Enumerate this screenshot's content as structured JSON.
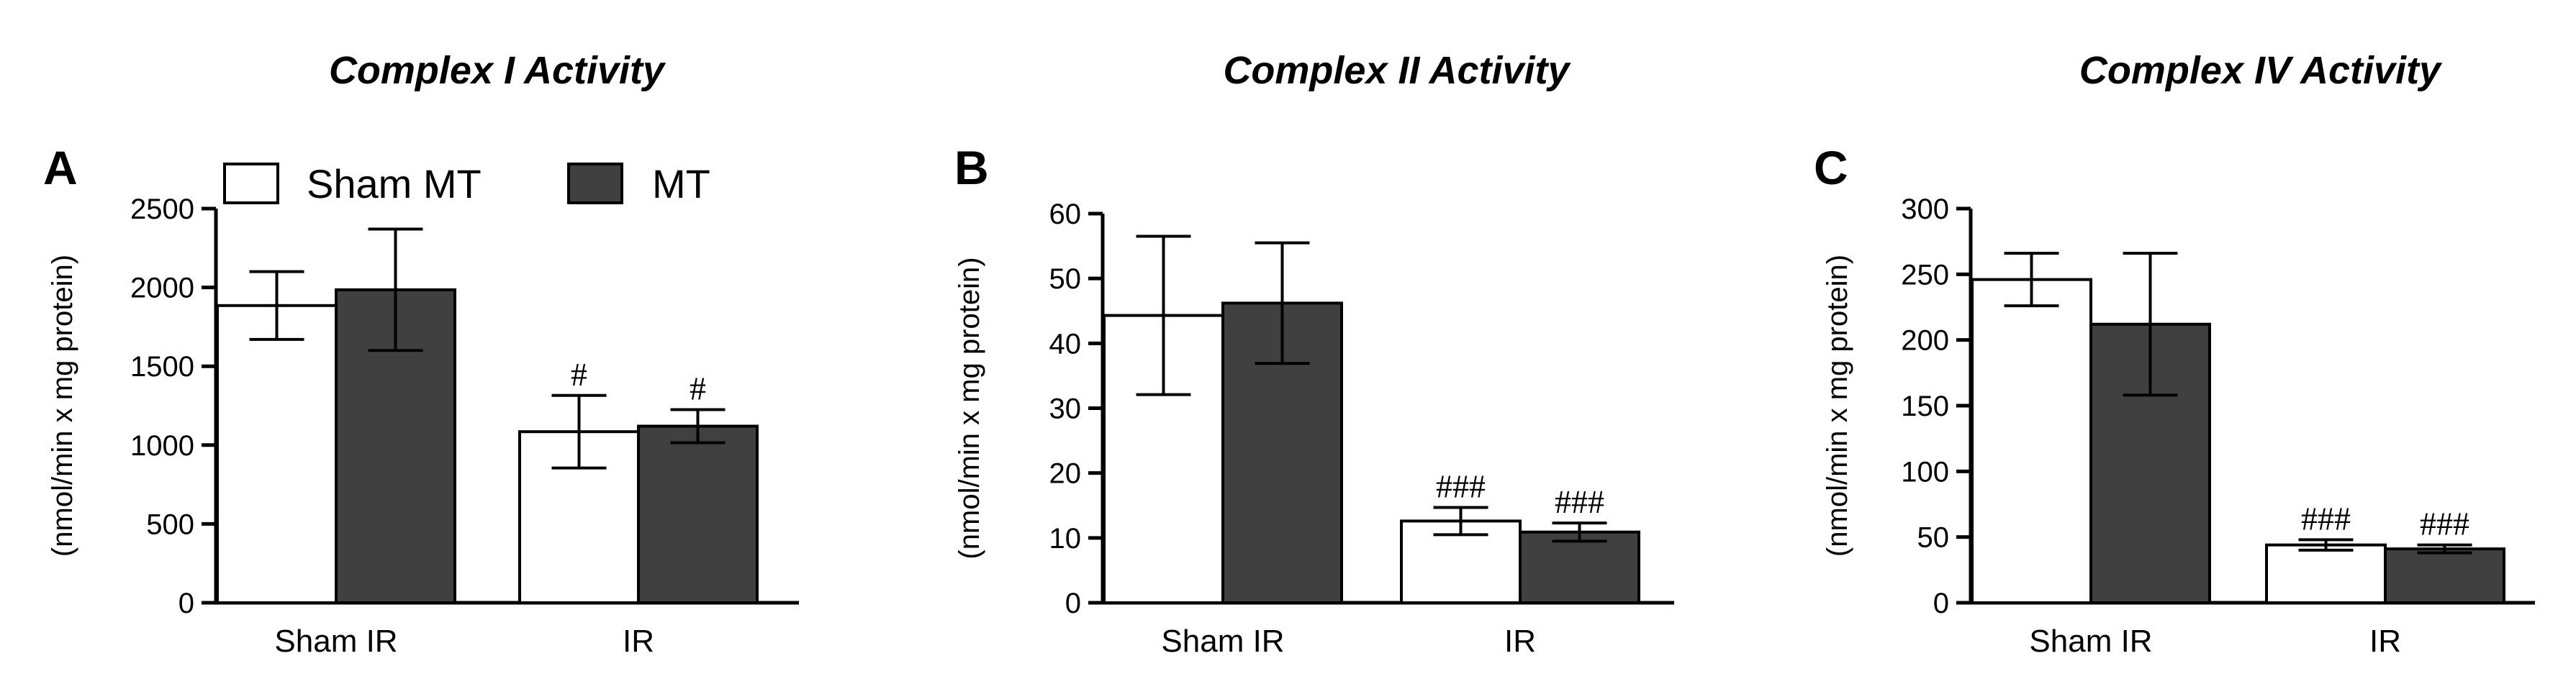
{
  "legend": [
    {
      "label": "Sham MT",
      "fill": "#ffffff",
      "stroke": "#000000"
    },
    {
      "label": "MT",
      "fill": "#404040",
      "stroke": "#000000"
    }
  ],
  "chart_data": [
    {
      "type": "bar",
      "panel": "A",
      "title": "Complex I Activity",
      "ylabel": "(nmol/min x mg protein)",
      "categories": [
        "Sham IR",
        "IR"
      ],
      "ylim": [
        0,
        2500
      ],
      "yticks": [
        "0",
        "500",
        "1000",
        "1500",
        "2000",
        "2500"
      ],
      "series": [
        {
          "name": "Sham MT",
          "color": "#ffffff",
          "values": [
            1885,
            1085
          ],
          "err": [
            215,
            230
          ],
          "annotations": [
            "",
            "#"
          ]
        },
        {
          "name": "MT",
          "color": "#404040",
          "values": [
            1985,
            1120
          ],
          "err": [
            385,
            105
          ],
          "annotations": [
            "",
            "#"
          ]
        }
      ],
      "legend_placement": "top-left"
    },
    {
      "type": "bar",
      "panel": "B",
      "title": "Complex II Activity",
      "ylabel": "(nmol/min x mg protein)",
      "categories": [
        "Sham IR",
        "IR"
      ],
      "ylim": [
        0,
        60
      ],
      "yticks": [
        "0",
        "10",
        "20",
        "30",
        "40",
        "50",
        "60"
      ],
      "series": [
        {
          "name": "Sham MT",
          "color": "#ffffff",
          "values": [
            44.3,
            12.6
          ],
          "err": [
            12.2,
            2.1
          ],
          "annotations": [
            "",
            "###"
          ]
        },
        {
          "name": "MT",
          "color": "#404040",
          "values": [
            46.2,
            10.9
          ],
          "err": [
            9.3,
            1.4
          ],
          "annotations": [
            "",
            "###"
          ]
        }
      ]
    },
    {
      "type": "bar",
      "panel": "C",
      "title": "Complex IV Activity",
      "ylabel": "(nmol/min x mg protein)",
      "categories": [
        "Sham IR",
        "IR"
      ],
      "ylim": [
        0,
        300
      ],
      "yticks": [
        "0",
        "50",
        "100",
        "150",
        "200",
        "250",
        "300"
      ],
      "series": [
        {
          "name": "Sham MT",
          "color": "#ffffff",
          "values": [
            246,
            44
          ],
          "err": [
            20,
            4
          ],
          "annotations": [
            "",
            "###"
          ]
        },
        {
          "name": "MT",
          "color": "#404040",
          "values": [
            212,
            41
          ],
          "err": [
            54,
            3
          ],
          "annotations": [
            "",
            "###"
          ]
        }
      ]
    }
  ]
}
